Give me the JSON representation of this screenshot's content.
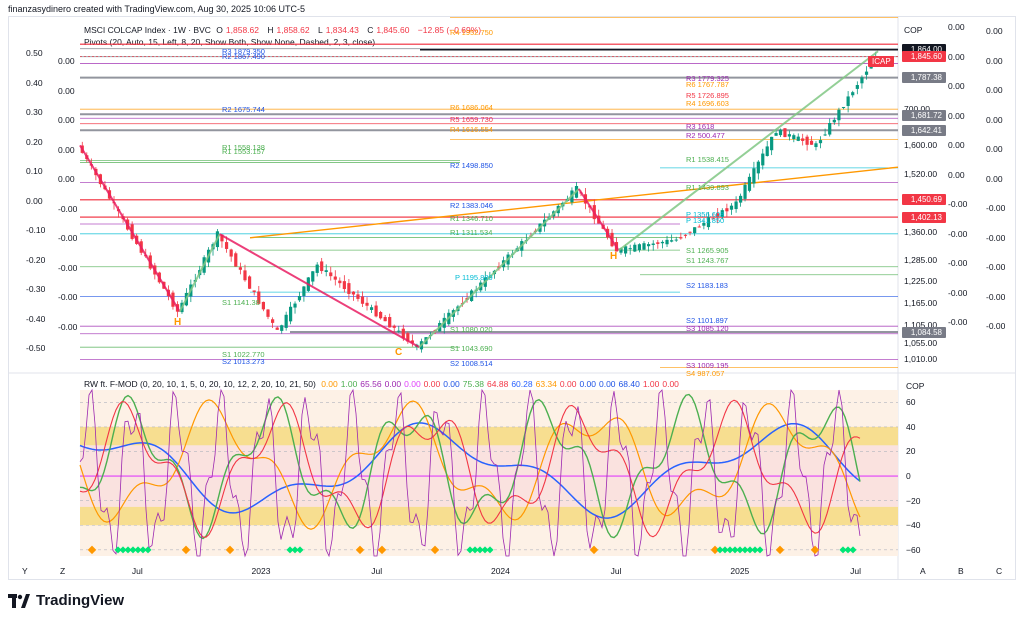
{
  "header": {
    "credit": "finanzasydinero created with TradingView.com, Aug 30, 2025 10:06 UTC-5"
  },
  "main_legend": {
    "symbol": "MSCI COLCAP Index · 1W · BVC",
    "o_label": "O",
    "o_value": "1,858.62",
    "h_label": "H",
    "h_value": "1,858.62",
    "l_label": "L",
    "l_value": "1,834.43",
    "c_label": "C",
    "c_value": "1,845.60",
    "change": "−12.85 (−0.69%)",
    "pivots": "Pivots (20, Auto, 15, Left, 8, 20, Show Both, Show None, Dashed, 2, 3, close)"
  },
  "osc_legend": {
    "name": "RW ft. F-MOD (0, 20, 10, 1, 5, 0, 20, 10, 12, 2, 20, 10, 21, 50)",
    "values": [
      {
        "v": "0.00",
        "c": "#ff9800"
      },
      {
        "v": "1.00",
        "c": "#4caf50"
      },
      {
        "v": "65.56",
        "c": "#9c27b0"
      },
      {
        "v": "0.00",
        "c": "#9c27b0"
      },
      {
        "v": "0.00",
        "c": "#e040fb"
      },
      {
        "v": "0.00",
        "c": "#f23645"
      },
      {
        "v": "0.00",
        "c": "#1e53e5"
      },
      {
        "v": "75.38",
        "c": "#4caf50"
      },
      {
        "v": "64.88",
        "c": "#f23645"
      },
      {
        "v": "60.28",
        "c": "#2962ff"
      },
      {
        "v": "63.34",
        "c": "#ff9800"
      },
      {
        "v": "0.00",
        "c": "#f23645"
      },
      {
        "v": "0.00",
        "c": "#1e53e5"
      },
      {
        "v": "0.00",
        "c": "#1e53e5"
      },
      {
        "v": "68.40",
        "c": "#1e53e5"
      },
      {
        "v": "1.00",
        "c": "#f23645"
      },
      {
        "v": "0.00",
        "c": "#f23645"
      }
    ]
  },
  "price_axis": {
    "currency": "COP",
    "ticks": [
      "700.00",
      "1,600.00",
      "1,520.00",
      "1,360.00",
      "1,285.00",
      "1,225.00",
      "1,165.00",
      "1,105.00",
      "1,055.00",
      "1,010.00"
    ],
    "tags": [
      {
        "v": "1,864.00",
        "bg": "#131722"
      },
      {
        "v": "1,845.60",
        "bg": "#f23645"
      },
      {
        "v": "1,787.38",
        "bg": "#787b86"
      },
      {
        "v": "1,681.72",
        "bg": "#787b86"
      },
      {
        "v": "1,642.41",
        "bg": "#787b86"
      },
      {
        "v": "1,450.69",
        "bg": "#f23645"
      },
      {
        "v": "1,402.13",
        "bg": "#f23645"
      },
      {
        "v": "1,084.58",
        "bg": "#787b86"
      }
    ],
    "icap_label": "ICAP"
  },
  "left_levels": [
    "0.50",
    "0.40",
    "0.30",
    "0.20",
    "0.10",
    "0.00",
    "-0.10",
    "-0.20",
    "-0.30",
    "-0.40",
    "-0.50"
  ],
  "left_levels_2": [
    "0.00",
    "0.00",
    "0.00",
    "0.00",
    "0.00",
    "-0.00",
    "-0.00",
    "-0.00",
    "-0.00",
    "-0.00"
  ],
  "right_levels_a": [
    "0.00",
    "0.00",
    "0.00",
    "0.00",
    "0.00",
    "0.00",
    "-0.00",
    "-0.00",
    "-0.00",
    "-0.00",
    "-0.00"
  ],
  "right_levels_b": [
    "0.00",
    "0.00",
    "0.00",
    "0.00",
    "0.00",
    "0.00",
    "-0.00",
    "-0.00",
    "-0.00",
    "-0.00",
    "-0.00"
  ],
  "pivot_labels": [
    {
      "t": "R4",
      "v": "1952.750",
      "c": "#ff9800"
    },
    {
      "t": "R3",
      "v": "1879.350",
      "c": "#1e53e5"
    },
    {
      "t": "R2",
      "v": "1867.490",
      "c": "#1e53e5"
    },
    {
      "t": "R2",
      "v": "1675.744",
      "c": "#1e53e5"
    },
    {
      "t": "R1",
      "v": "1558.138",
      "c": "#4caf50"
    },
    {
      "t": "R1",
      "v": "1553.157",
      "c": "#4caf50"
    },
    {
      "t": "R6",
      "v": "1686.064",
      "c": "#ff9800"
    },
    {
      "t": "R5",
      "v": "1659.730",
      "c": "#f23645"
    },
    {
      "t": "R4",
      "v": "1616.554",
      "c": "#ff9800"
    },
    {
      "t": "R2",
      "v": "1498.850",
      "c": "#1e53e5"
    },
    {
      "t": "R2",
      "v": "1383.046",
      "c": "#1e53e5"
    },
    {
      "t": "R1",
      "v": "1346.710",
      "c": "#4caf50"
    },
    {
      "t": "R1",
      "v": "1311.534",
      "c": "#4caf50"
    },
    {
      "t": "P",
      "v": "1195.889",
      "c": "#00bcd4"
    },
    {
      "t": "S1",
      "v": "1141.38",
      "c": "#4caf50"
    },
    {
      "t": "S1",
      "v": "1080.020",
      "c": "#4caf50"
    },
    {
      "t": "S1",
      "v": "1043.690",
      "c": "#4caf50"
    },
    {
      "t": "S2",
      "v": "1008.514",
      "c": "#1e53e5"
    },
    {
      "t": "S1",
      "v": "1022.770",
      "c": "#4caf50"
    },
    {
      "t": "S2",
      "v": "1013.273",
      "c": "#1e53e5"
    },
    {
      "t": "R3",
      "v": "1779.325",
      "c": "#9c27b0"
    },
    {
      "t": "R6",
      "v": "1767.787",
      "c": "#ff9800"
    },
    {
      "t": "R5",
      "v": "1726.895",
      "c": "#f23645"
    },
    {
      "t": "R4",
      "v": "1696.603",
      "c": "#ff9800"
    },
    {
      "t": "R3",
      "v": "1618",
      "c": "#9c27b0"
    },
    {
      "t": "R2",
      "v": "500.477",
      "c": "#9c27b0"
    },
    {
      "t": "R1",
      "v": "1538.415",
      "c": "#4caf50"
    },
    {
      "t": "R1",
      "v": "1439.893",
      "c": "#4caf50"
    },
    {
      "t": "P",
      "v": "1356.608",
      "c": "#00bcd4"
    },
    {
      "t": "P",
      "v": "1341.850",
      "c": "#00bcd4"
    },
    {
      "t": "S1",
      "v": "1265.905",
      "c": "#4caf50"
    },
    {
      "t": "S1",
      "v": "1243.767",
      "c": "#4caf50"
    },
    {
      "t": "S2",
      "v": "1183.183",
      "c": "#1e53e5"
    },
    {
      "t": "S2",
      "v": "1101.897",
      "c": "#1e53e5"
    },
    {
      "t": "S3",
      "v": "1085.120",
      "c": "#9c27b0"
    },
    {
      "t": "S3",
      "v": "1009.195",
      "c": "#9c27b0"
    },
    {
      "t": "S4",
      "v": "987.057",
      "c": "#ff9800"
    }
  ],
  "pattern_labels": [
    "H",
    "C",
    "H"
  ],
  "osc_axis": {
    "currency": "COP",
    "ticks": [
      "60",
      "40",
      "20",
      "0",
      "−20",
      "−40",
      "−60"
    ]
  },
  "time_axis": [
    "Jul",
    "2023",
    "Jul",
    "2024",
    "Jul",
    "2025",
    "Jul"
  ],
  "corner_labels": {
    "y": "Y",
    "z": "Z",
    "a": "A",
    "b": "B",
    "c": "C"
  },
  "brand": "TradingView",
  "chart_data": {
    "type": "candlestick",
    "title": "MSCI COLCAP Index · 1W · BVC",
    "ylim": [
      980,
      1880
    ],
    "x_range": [
      "2022-04",
      "2025-09"
    ],
    "swing_points": [
      {
        "x": "2022-04",
        "y": 1600
      },
      {
        "x": "2022-09",
        "y": 1141
      },
      {
        "x": "2022-11",
        "y": 1355
      },
      {
        "x": "2023-02",
        "y": 1085
      },
      {
        "x": "2023-04",
        "y": 1270
      },
      {
        "x": "2023-09",
        "y": 1043
      },
      {
        "x": "2024-05",
        "y": 1480
      },
      {
        "x": "2024-07",
        "y": 1310
      },
      {
        "x": "2024-10",
        "y": 1340
      },
      {
        "x": "2025-01",
        "y": 1440
      },
      {
        "x": "2025-03",
        "y": 1640
      },
      {
        "x": "2025-05",
        "y": 1600
      },
      {
        "x": "2025-08",
        "y": 1845.6
      }
    ],
    "oscillator_ylim": [
      -65,
      70
    ]
  }
}
